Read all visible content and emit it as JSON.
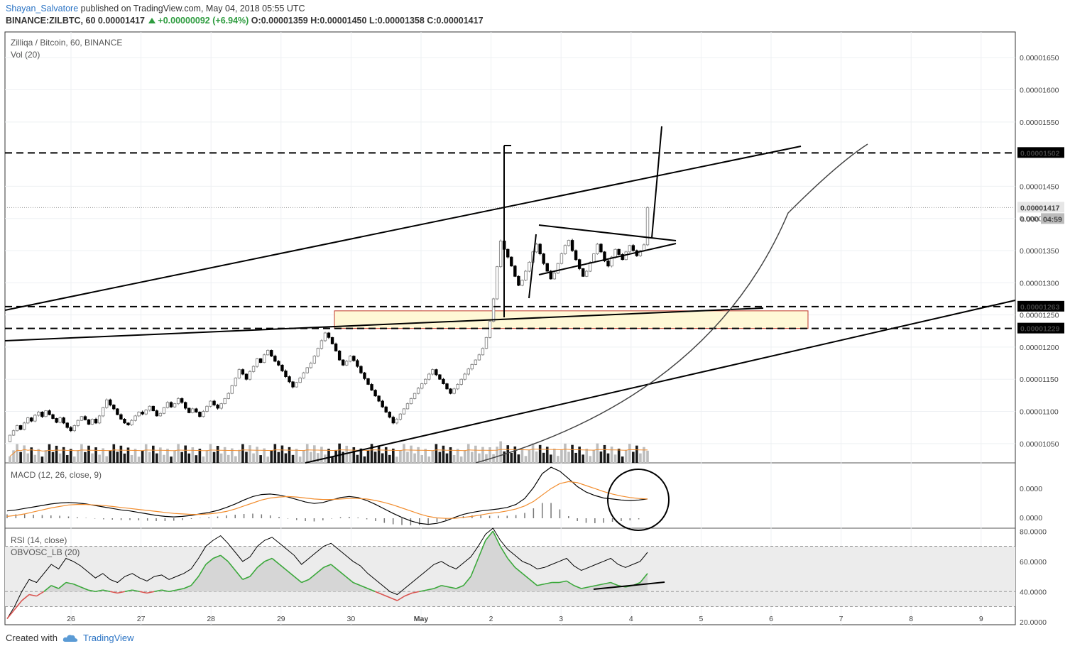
{
  "header": {
    "author": "Shayan_Salvatore",
    "published": "published on TradingView.com, May 04, 2018 05:55 UTC",
    "symbol_line": "BINANCE:ZILBTC, 60",
    "last": "0.00001417",
    "change": "+0.00000092 (+6.94%)",
    "open_label": "O:",
    "open": "0.00001359",
    "high_label": "H:",
    "high": "0.00001450",
    "low_label": "L:",
    "low": "0.00001358",
    "close_label": "C:",
    "close": "0.00001417"
  },
  "footer": {
    "created_with": "Created with",
    "brand": "TradingView"
  },
  "colors": {
    "up": "#ffffff",
    "down": "#000000",
    "signal": "#f28d2e",
    "rsi": "#000000",
    "obv": "#3aa83a",
    "zone": "#fff8d6",
    "zone_border": "#c0392b"
  },
  "chart_data": [
    {
      "type": "candlestick",
      "title": "Zilliqa / Bitcoin, 60, BINANCE",
      "volume_label": "Vol (20)",
      "ylim": [
        1.02e-05,
        1.69e-05
      ],
      "y_ticks": [
        "0.00001650",
        "0.00001600",
        "0.00001550",
        "0.00001450",
        "0.00001400",
        "0.00001350",
        "0.00001300",
        "0.00001250",
        "0.00001200",
        "0.00001150",
        "0.00001100",
        "0.00001050"
      ],
      "x_ticks": [
        "26",
        "27",
        "28",
        "29",
        "30",
        "May",
        "2",
        "3",
        "4",
        "5",
        "6",
        "7",
        "8",
        "9"
      ],
      "key_levels": [
        {
          "label": "0.00001502",
          "value": 1.502e-05
        },
        {
          "label": "0.00001263",
          "value": 1.263e-05
        },
        {
          "label": "0.00001229",
          "value": 1.229e-05
        }
      ],
      "last_price_label": "0.00001417",
      "countdown": "04:59",
      "hidden_price_label": "0.000",
      "closes": [
        1.063e-05,
        1.07e-05,
        1.078e-05,
        1.072e-05,
        1.082e-05,
        1.09e-05,
        1.085e-05,
        1.094e-05,
        1.099e-05,
        1.092e-05,
        1.101e-05,
        1.095e-05,
        1.089e-05,
        1.083e-05,
        1.09e-05,
        1.082e-05,
        1.075e-05,
        1.07e-05,
        1.078e-05,
        1.086e-05,
        1.092e-05,
        1.087e-05,
        1.08e-05,
        1.088e-05,
        1.082e-05,
        1.093e-05,
        1.106e-05,
        1.118e-05,
        1.11e-05,
        1.104e-05,
        1.095e-05,
        1.088e-05,
        1.082e-05,
        1.079e-05,
        1.086e-05,
        1.093e-05,
        1.099e-05,
        1.096e-05,
        1.102e-05,
        1.108e-05,
        1.101e-05,
        1.093e-05,
        1.097e-05,
        1.106e-05,
        1.114e-05,
        1.107e-05,
        1.112e-05,
        1.12e-05,
        1.114e-05,
        1.105e-05,
        1.098e-05,
        1.104e-05,
        1.099e-05,
        1.092e-05,
        1.1e-05,
        1.108e-05,
        1.116e-05,
        1.11e-05,
        1.105e-05,
        1.112e-05,
        1.12e-05,
        1.128e-05,
        1.14e-05,
        1.152e-05,
        1.165e-05,
        1.158e-05,
        1.15e-05,
        1.162e-05,
        1.17e-05,
        1.182e-05,
        1.176e-05,
        1.188e-05,
        1.195e-05,
        1.186e-05,
        1.178e-05,
        1.172e-05,
        1.163e-05,
        1.154e-05,
        1.146e-05,
        1.138e-05,
        1.145e-05,
        1.152e-05,
        1.16e-05,
        1.168e-05,
        1.175e-05,
        1.186e-05,
        1.198e-05,
        1.21e-05,
        1.222e-05,
        1.215e-05,
        1.205e-05,
        1.194e-05,
        1.18e-05,
        1.172e-05,
        1.178e-05,
        1.186e-05,
        1.179e-05,
        1.17e-05,
        1.16e-05,
        1.151e-05,
        1.142e-05,
        1.133e-05,
        1.124e-05,
        1.116e-05,
        1.107e-05,
        1.099e-05,
        1.091e-05,
        1.082e-05,
        1.088e-05,
        1.096e-05,
        1.104e-05,
        1.112e-05,
        1.12e-05,
        1.128e-05,
        1.136e-05,
        1.143e-05,
        1.15e-05,
        1.158e-05,
        1.165e-05,
        1.157e-05,
        1.15e-05,
        1.143e-05,
        1.135e-05,
        1.128e-05,
        1.135e-05,
        1.142e-05,
        1.15e-05,
        1.158e-05,
        1.166e-05,
        1.173e-05,
        1.18e-05,
        1.188e-05,
        1.198e-05,
        1.215e-05,
        1.24e-05,
        1.275e-05,
        1.325e-05,
        1.365e-05,
        1.352e-05,
        1.34e-05,
        1.326e-05,
        1.31e-05,
        1.296e-05,
        1.304e-05,
        1.318e-05,
        1.332e-05,
        1.348e-05,
        1.36e-05,
        1.345e-05,
        1.33e-05,
        1.318e-05,
        1.306e-05,
        1.315e-05,
        1.33e-05,
        1.345e-05,
        1.358e-05,
        1.366e-05,
        1.35e-05,
        1.336e-05,
        1.322e-05,
        1.31e-05,
        1.318e-05,
        1.332e-05,
        1.345e-05,
        1.36e-05,
        1.348e-05,
        1.334e-05,
        1.326e-05,
        1.34e-05,
        1.352e-05,
        1.344e-05,
        1.336e-05,
        1.348e-05,
        1.358e-05,
        1.35e-05,
        1.342e-05,
        1.35e-05,
        1.359e-05,
        1.417e-05
      ]
    },
    {
      "type": "line",
      "title": "MACD (12, 26, close, 9)",
      "y_ticks": [
        "0.0000",
        "0.0000"
      ],
      "series": [
        {
          "name": "MACD",
          "values": [
            0.1,
            0.3,
            0.6,
            0.9,
            1.2,
            1.5,
            1.7,
            1.8,
            1.7,
            1.5,
            1.2,
            0.9,
            0.6,
            0.3,
            0.1,
            -0.2,
            -0.5,
            -0.8,
            -1.0,
            -1.1,
            -1.0,
            -0.8,
            -0.5,
            -0.2,
            0.2,
            0.8,
            1.5,
            2.3,
            3.0,
            3.4,
            3.5,
            3.3,
            2.9,
            2.4,
            1.9,
            1.6,
            1.8,
            2.3,
            2.8,
            3.0,
            2.8,
            2.2,
            1.4,
            0.5,
            -0.4,
            -1.2,
            -1.9,
            -2.4,
            -2.6,
            -2.4,
            -1.9,
            -1.2,
            -0.6,
            -0.2,
            0.1,
            0.3,
            0.5,
            0.8,
            1.4,
            2.6,
            4.8,
            7.6,
            8.9,
            8.1,
            6.6,
            5.0,
            3.9,
            3.2,
            2.7,
            2.5,
            2.3,
            2.2,
            2.3,
            2.5
          ]
        },
        {
          "name": "Signal",
          "values": [
            -1.0,
            -0.8,
            -0.5,
            -0.1,
            0.3,
            0.7,
            1.0,
            1.3,
            1.4,
            1.4,
            1.3,
            1.2,
            1.0,
            0.8,
            0.6,
            0.4,
            0.2,
            0.0,
            -0.2,
            -0.4,
            -0.5,
            -0.6,
            -0.6,
            -0.5,
            -0.3,
            0.0,
            0.5,
            1.1,
            1.7,
            2.3,
            2.7,
            2.9,
            3.0,
            2.9,
            2.7,
            2.5,
            2.4,
            2.4,
            2.5,
            2.6,
            2.6,
            2.5,
            2.2,
            1.8,
            1.3,
            0.7,
            0.1,
            -0.5,
            -1.0,
            -1.3,
            -1.4,
            -1.4,
            -1.2,
            -1.0,
            -0.7,
            -0.4,
            -0.2,
            0.1,
            0.5,
            1.1,
            2.0,
            3.3,
            4.6,
            5.6,
            6.0,
            5.8,
            5.2,
            4.6,
            4.0,
            3.5,
            3.1,
            2.8,
            2.6,
            2.5
          ]
        }
      ]
    },
    {
      "type": "line",
      "title": "RSI (14, close)",
      "subtitle": "OBVOSC_LB (20)",
      "ylim": [
        18,
        82
      ],
      "y_ticks": [
        "80.0000",
        "60.0000",
        "40.0000",
        "20.0000"
      ],
      "series": [
        {
          "name": "RSI",
          "values": [
            22,
            30,
            40,
            48,
            46,
            52,
            58,
            55,
            62,
            60,
            57,
            53,
            49,
            52,
            48,
            46,
            50,
            52,
            49,
            47,
            50,
            51,
            48,
            50,
            52,
            55,
            62,
            70,
            74,
            77,
            72,
            66,
            60,
            63,
            70,
            74,
            76,
            72,
            68,
            64,
            58,
            62,
            66,
            70,
            72,
            68,
            64,
            60,
            57,
            52,
            48,
            44,
            40,
            38,
            42,
            46,
            50,
            54,
            58,
            60,
            57,
            55,
            59,
            63,
            70,
            78,
            82,
            74,
            68,
            64,
            60,
            58,
            55,
            56,
            58,
            60,
            62,
            57,
            54,
            56,
            58,
            60,
            62,
            58,
            56,
            58,
            60,
            66
          ]
        },
        {
          "name": "OBVOSC_LB",
          "values": [
            22,
            28,
            34,
            38,
            37,
            40,
            44,
            42,
            46,
            45,
            43,
            41,
            40,
            41,
            40,
            39,
            40,
            41,
            40,
            39,
            40,
            41,
            40,
            41,
            42,
            44,
            50,
            58,
            62,
            64,
            60,
            54,
            48,
            50,
            56,
            60,
            62,
            58,
            54,
            50,
            46,
            48,
            52,
            56,
            58,
            54,
            50,
            46,
            44,
            42,
            40,
            38,
            36,
            34,
            37,
            39,
            40,
            41,
            42,
            44,
            43,
            42,
            44,
            50,
            62,
            74,
            80,
            70,
            62,
            56,
            52,
            48,
            44,
            45,
            46,
            46,
            47,
            44,
            42,
            43,
            44,
            45,
            46,
            44,
            43,
            44,
            46,
            52
          ]
        }
      ]
    }
  ]
}
